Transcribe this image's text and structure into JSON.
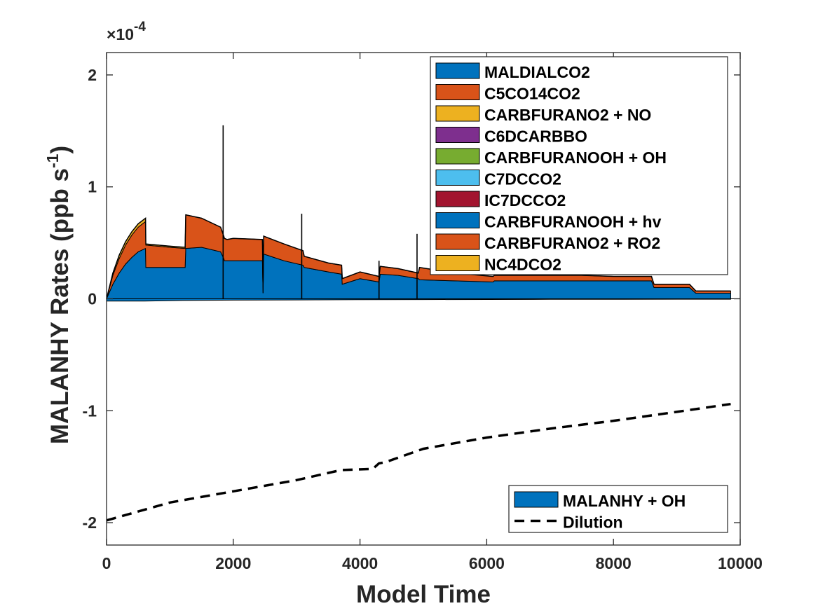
{
  "chart_data": {
    "type": "area",
    "xlabel": "Model Time",
    "ylabel": "MALANHY Rates (ppb s",
    "ylabel_sup": "-1",
    "ylabel_tail": ")",
    "exponent_label": "×10",
    "exponent_power": "-4",
    "xlim": [
      0,
      10000
    ],
    "ylim": [
      -2.2,
      2.2
    ],
    "x_ticks": [
      0,
      2000,
      4000,
      6000,
      8000,
      10000
    ],
    "x_tick_labels": [
      "0",
      "2000",
      "4000",
      "6000",
      "8000",
      "10000"
    ],
    "y_ticks": [
      -2,
      -1,
      0,
      1,
      2
    ],
    "y_tick_labels": [
      "-2",
      "-1",
      "0",
      "1",
      "2"
    ],
    "grid": false,
    "legend_positive_placement": "top-right",
    "legend_negative_placement": "bottom-right",
    "x": [
      0,
      100,
      200,
      300,
      400,
      500,
      615,
      620,
      1000,
      1240,
      1250,
      1500,
      1800,
      1850,
      1860,
      1900,
      2000,
      2460,
      2470,
      2480,
      2800,
      3100,
      3120,
      3500,
      3710,
      3720,
      4000,
      4300,
      4320,
      4600,
      4920,
      4940,
      5500,
      6100,
      6120,
      6500,
      7000,
      7500,
      8000,
      8600,
      8640,
      9000,
      9200,
      9300,
      9500,
      9850
    ],
    "positive_series": [
      {
        "name": "MALDIALCO2",
        "color": "#0072BD",
        "values": [
          0.0,
          0.13,
          0.23,
          0.31,
          0.37,
          0.42,
          0.45,
          0.28,
          0.28,
          0.28,
          0.45,
          0.46,
          0.42,
          0.36,
          0.34,
          0.34,
          0.34,
          0.34,
          0.05,
          0.4,
          0.34,
          0.3,
          0.28,
          0.24,
          0.22,
          0.13,
          0.18,
          0.15,
          0.22,
          0.21,
          0.18,
          0.17,
          0.16,
          0.15,
          0.16,
          0.16,
          0.16,
          0.16,
          0.16,
          0.16,
          0.1,
          0.1,
          0.1,
          0.05,
          0.05,
          0.05
        ]
      },
      {
        "name": "C5CO14CO2",
        "color": "#D95319",
        "values": [
          0.0,
          0.08,
          0.13,
          0.17,
          0.2,
          0.22,
          0.24,
          0.2,
          0.18,
          0.17,
          0.3,
          0.26,
          0.22,
          0.2,
          0.2,
          0.19,
          0.2,
          0.19,
          0.08,
          0.16,
          0.15,
          0.13,
          0.1,
          0.08,
          0.08,
          0.05,
          0.06,
          0.05,
          0.07,
          0.06,
          0.05,
          0.11,
          0.07,
          0.05,
          0.05,
          0.05,
          0.05,
          0.05,
          0.04,
          0.04,
          0.03,
          0.03,
          0.03,
          0.02,
          0.02,
          0.02
        ]
      },
      {
        "name": "CARBFURANO2 + NO",
        "color": "#EDB120",
        "values": [
          0.0,
          0.02,
          0.03,
          0.03,
          0.03,
          0.03,
          0.03,
          0.01,
          0.01,
          0.01,
          0.0,
          0.0,
          0.0,
          0.0,
          0.0,
          0.0,
          0.0,
          0.0,
          0.0,
          0.0,
          0.0,
          0.0,
          0.0,
          0.0,
          0.0,
          0.0,
          0.0,
          0.0,
          0.0,
          0.0,
          0.0,
          0.0,
          0.0,
          0.0,
          0.0,
          0.0,
          0.0,
          0.0,
          0.0,
          0.0,
          0.0,
          0.0,
          0.0,
          0.0,
          0.0,
          0.0
        ]
      },
      {
        "name": "C6DCARBBO",
        "color": "#7E2F8E",
        "values": [
          0.0,
          0.0,
          0.0,
          0.0,
          0.0,
          0.0,
          0.0,
          0.0,
          0.0,
          0.0,
          0.0,
          0.0,
          0.0,
          0.0,
          0.0,
          0.0,
          0.0,
          0.0,
          0.0,
          0.0,
          0.0,
          0.0,
          0.0,
          0.0,
          0.0,
          0.0,
          0.0,
          0.0,
          0.0,
          0.0,
          0.0,
          0.0,
          0.0,
          0.0,
          0.0,
          0.0,
          0.0,
          0.0,
          0.0,
          0.0,
          0.0,
          0.0,
          0.0,
          0.0,
          0.0,
          0.0
        ]
      },
      {
        "name": "CARBFURANOOH + OH",
        "color": "#77AC30",
        "values": [
          0.0,
          0.0,
          0.0,
          0.0,
          0.0,
          0.0,
          0.0,
          0.0,
          0.0,
          0.0,
          0.0,
          0.0,
          0.0,
          0.0,
          0.0,
          0.0,
          0.0,
          0.0,
          0.0,
          0.0,
          0.0,
          0.0,
          0.0,
          0.0,
          0.0,
          0.0,
          0.0,
          0.0,
          0.0,
          0.0,
          0.0,
          0.0,
          0.0,
          0.0,
          0.0,
          0.0,
          0.0,
          0.0,
          0.0,
          0.0,
          0.0,
          0.0,
          0.0,
          0.0,
          0.0,
          0.0
        ]
      },
      {
        "name": "C7DCCO2",
        "color": "#4DBEEE",
        "values": [
          0.0,
          0.0,
          0.0,
          0.0,
          0.0,
          0.0,
          0.0,
          0.0,
          0.0,
          0.0,
          0.0,
          0.0,
          0.0,
          0.0,
          0.0,
          0.0,
          0.0,
          0.0,
          0.0,
          0.0,
          0.0,
          0.0,
          0.0,
          0.0,
          0.0,
          0.0,
          0.0,
          0.0,
          0.0,
          0.0,
          0.0,
          0.0,
          0.0,
          0.0,
          0.0,
          0.0,
          0.0,
          0.0,
          0.0,
          0.0,
          0.0,
          0.0,
          0.0,
          0.0,
          0.0,
          0.0
        ]
      },
      {
        "name": "IC7DCCO2",
        "color": "#A2142F",
        "values": [
          0.0,
          0.0,
          0.0,
          0.0,
          0.0,
          0.0,
          0.0,
          0.0,
          0.0,
          0.0,
          0.0,
          0.0,
          0.0,
          0.0,
          0.0,
          0.0,
          0.0,
          0.0,
          0.0,
          0.0,
          0.0,
          0.0,
          0.0,
          0.0,
          0.0,
          0.0,
          0.0,
          0.0,
          0.0,
          0.0,
          0.0,
          0.0,
          0.0,
          0.0,
          0.0,
          0.0,
          0.0,
          0.0,
          0.0,
          0.0,
          0.0,
          0.0,
          0.0,
          0.0,
          0.0,
          0.0
        ]
      },
      {
        "name": "CARBFURANOOH + hv",
        "color": "#0072BD",
        "values": [
          0.0,
          0.0,
          0.0,
          0.0,
          0.0,
          0.0,
          0.0,
          0.0,
          0.0,
          0.0,
          0.0,
          0.0,
          0.0,
          0.0,
          0.0,
          0.0,
          0.0,
          0.0,
          0.0,
          0.0,
          0.0,
          0.0,
          0.0,
          0.0,
          0.0,
          0.0,
          0.0,
          0.0,
          0.0,
          0.0,
          0.0,
          0.0,
          0.0,
          0.0,
          0.0,
          0.0,
          0.0,
          0.0,
          0.0,
          0.0,
          0.0,
          0.0,
          0.0,
          0.0,
          0.0,
          0.0
        ]
      },
      {
        "name": "CARBFURANO2 + RO2",
        "color": "#D95319",
        "values": [
          0.0,
          0.0,
          0.0,
          0.0,
          0.0,
          0.0,
          0.0,
          0.0,
          0.0,
          0.0,
          0.0,
          0.0,
          0.0,
          0.0,
          0.0,
          0.0,
          0.0,
          0.0,
          0.0,
          0.0,
          0.0,
          0.0,
          0.0,
          0.0,
          0.0,
          0.0,
          0.0,
          0.0,
          0.0,
          0.0,
          0.0,
          0.0,
          0.0,
          0.0,
          0.0,
          0.0,
          0.0,
          0.0,
          0.0,
          0.0,
          0.0,
          0.0,
          0.0,
          0.0,
          0.0,
          0.0
        ]
      },
      {
        "name": "NC4DCO2",
        "color": "#EDB120",
        "values": [
          0.0,
          0.0,
          0.0,
          0.0,
          0.0,
          0.0,
          0.0,
          0.0,
          0.0,
          0.0,
          0.0,
          0.0,
          0.0,
          0.0,
          0.0,
          0.0,
          0.0,
          0.0,
          0.0,
          0.0,
          0.0,
          0.0,
          0.0,
          0.0,
          0.0,
          0.0,
          0.0,
          0.0,
          0.0,
          0.0,
          0.0,
          0.0,
          0.0,
          0.0,
          0.0,
          0.0,
          0.0,
          0.0,
          0.0,
          0.0,
          0.0,
          0.0,
          0.0,
          0.0,
          0.0,
          0.0
        ]
      }
    ],
    "negative_series": [
      {
        "name": "MALANHY + OH",
        "color": "#0072BD",
        "x": [
          0,
          600,
          1200,
          2000,
          3000,
          4000,
          5000,
          6000,
          7000,
          8000,
          9000,
          9850
        ],
        "values": [
          -0.02,
          -0.02,
          -0.015,
          -0.012,
          -0.01,
          -0.008,
          -0.007,
          -0.006,
          -0.005,
          -0.005,
          -0.004,
          -0.004
        ]
      }
    ],
    "spikes": [
      {
        "x": 1840,
        "top": 1.55
      },
      {
        "x": 3080,
        "top": 0.76
      },
      {
        "x": 4300,
        "top": 0.34
      },
      {
        "x": 4900,
        "top": 0.58
      }
    ],
    "line_series": [
      {
        "name": "Dilution",
        "color": "#000000",
        "style": "dashed",
        "x": [
          0,
          1000,
          2000,
          3000,
          3700,
          4200,
          4300,
          4400,
          5000,
          6000,
          7000,
          8000,
          9000,
          9850
        ],
        "values": [
          -1.98,
          -1.82,
          -1.72,
          -1.62,
          -1.53,
          -1.52,
          -1.47,
          -1.46,
          -1.34,
          -1.24,
          -1.16,
          -1.09,
          -1.01,
          -0.94
        ]
      }
    ]
  }
}
